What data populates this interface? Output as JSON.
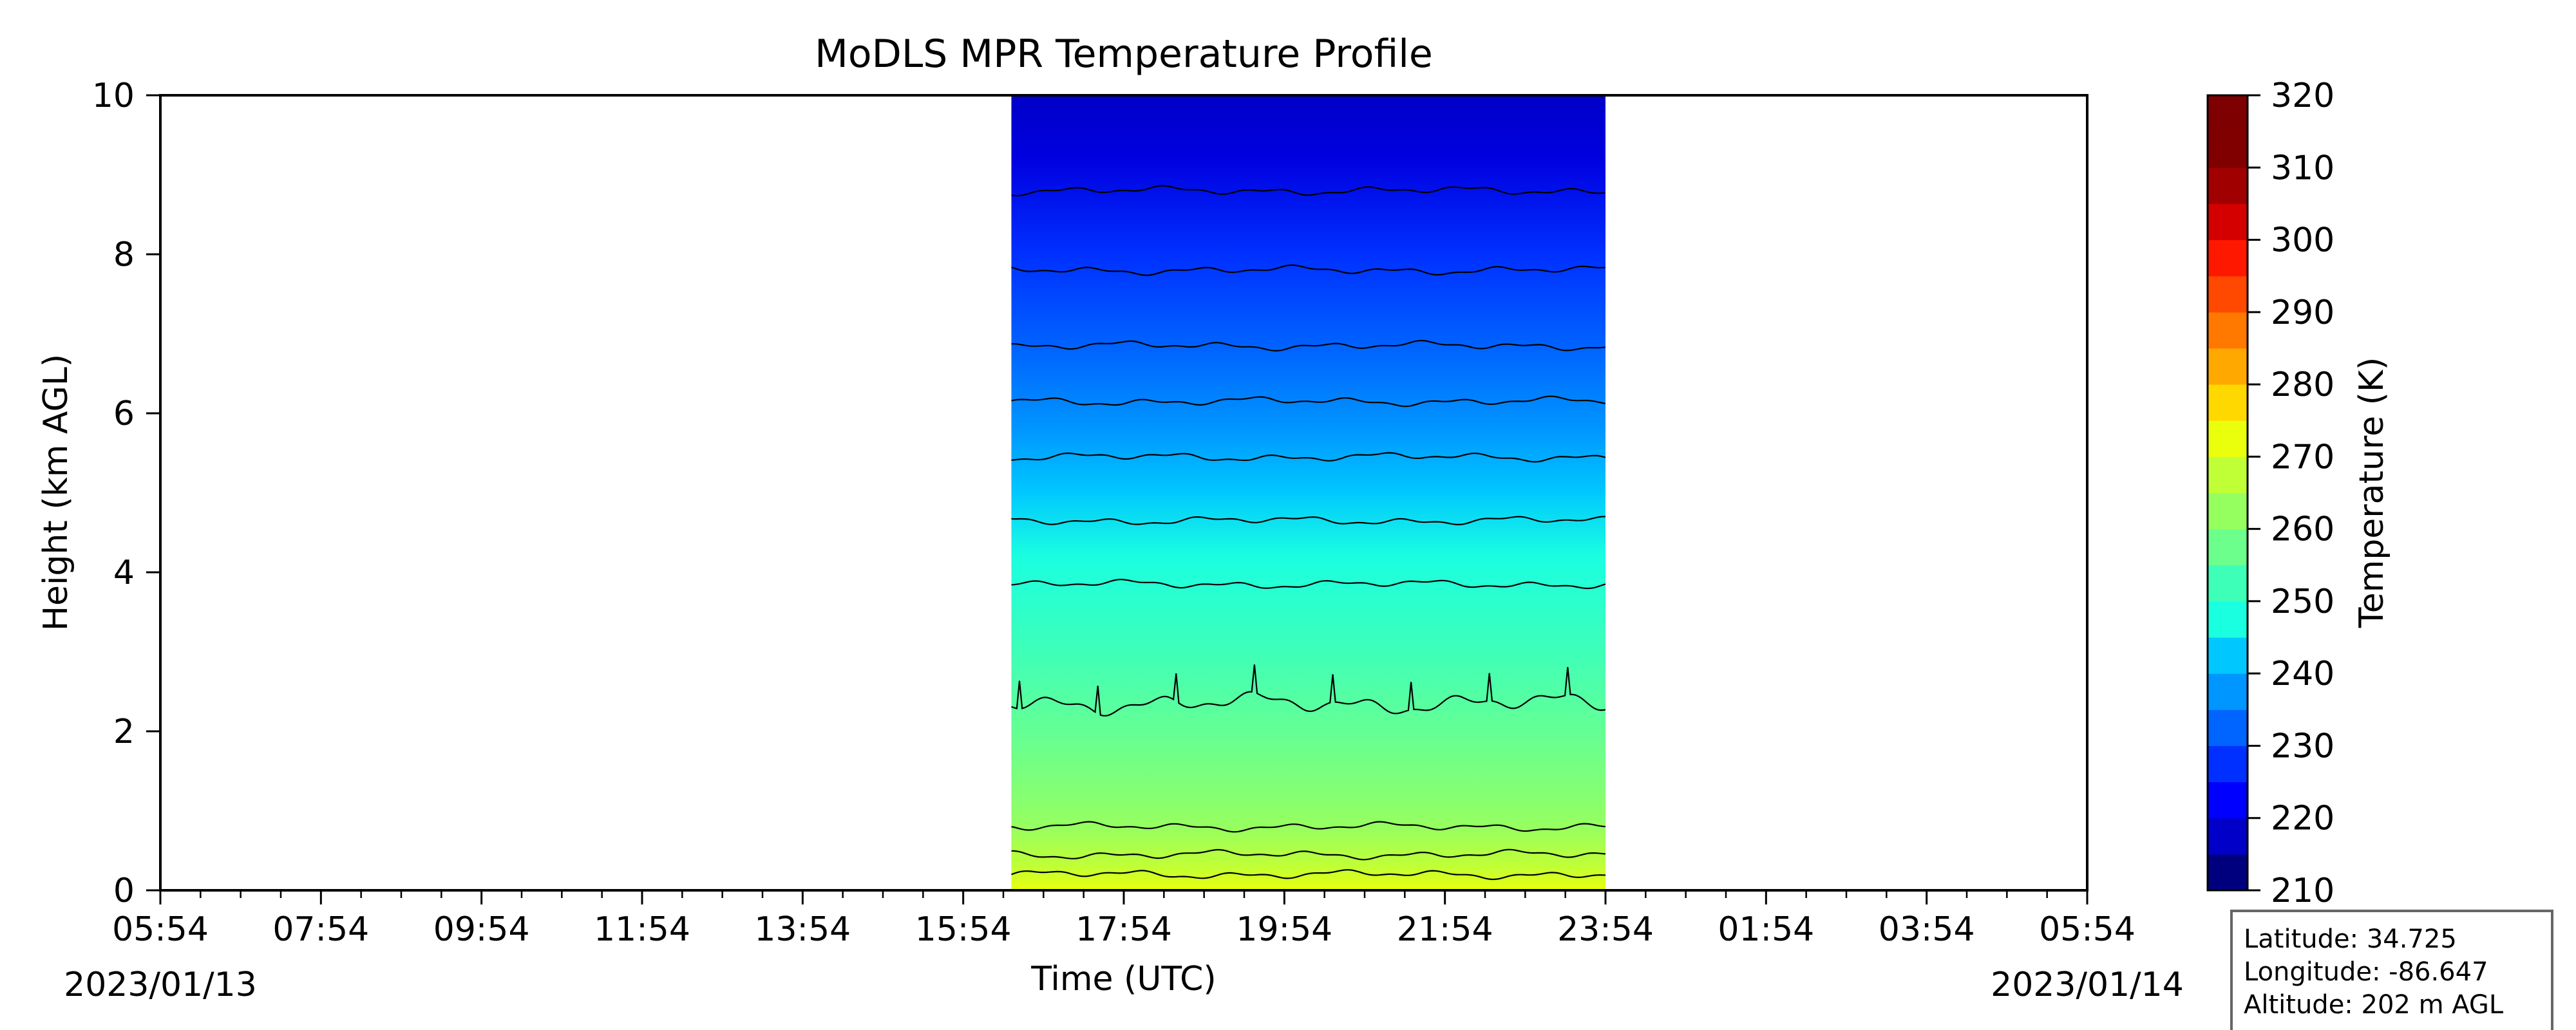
{
  "chart_data": {
    "type": "heatmap",
    "title": "MoDLS MPR Temperature Profile",
    "xlabel": "Time (UTC)",
    "ylabel": "Height (km AGL)",
    "x_ticks": [
      "05:54",
      "07:54",
      "09:54",
      "11:54",
      "13:54",
      "15:54",
      "17:54",
      "19:54",
      "21:54",
      "23:54",
      "01:54",
      "03:54",
      "05:54"
    ],
    "x_range_hours": [
      0,
      24
    ],
    "date_start": "2023/01/13",
    "date_end": "2023/01/14",
    "ylim": [
      0,
      10
    ],
    "y_ticks": [
      "0",
      "2",
      "4",
      "6",
      "8",
      "10"
    ],
    "data_time_range_hours": [
      10.6,
      18.0
    ],
    "contour_levels_K": [
      215,
      220,
      225,
      230,
      235,
      240,
      245,
      250,
      255,
      260,
      265,
      270,
      275,
      280
    ],
    "contour_heights_km": [
      0.2,
      0.45,
      0.8,
      2.35,
      3.85,
      4.65,
      5.45,
      6.15,
      6.85,
      7.8,
      8.8
    ],
    "colorbar": {
      "label": "Temperature (K)",
      "min": 210,
      "max": 320,
      "ticks": [
        "210",
        "220",
        "230",
        "240",
        "250",
        "260",
        "270",
        "280",
        "290",
        "300",
        "310",
        "320"
      ],
      "band_colors": [
        "#00007f",
        "#0000c8",
        "#0000ff",
        "#0030ff",
        "#0064ff",
        "#0096ff",
        "#00c8ff",
        "#1affe0",
        "#3effb8",
        "#6cff8c",
        "#96ff60",
        "#c0ff36",
        "#eaff0c",
        "#ffd800",
        "#ffa800",
        "#ff7800",
        "#ff4800",
        "#ff1800",
        "#d40000",
        "#a00000",
        "#800000",
        "#7f0000"
      ]
    },
    "grid": false
  },
  "info_box": {
    "latitude": "Latitude: 34.725",
    "longitude": "Longitude: -86.647",
    "altitude": "Altitude: 202 m AGL"
  }
}
